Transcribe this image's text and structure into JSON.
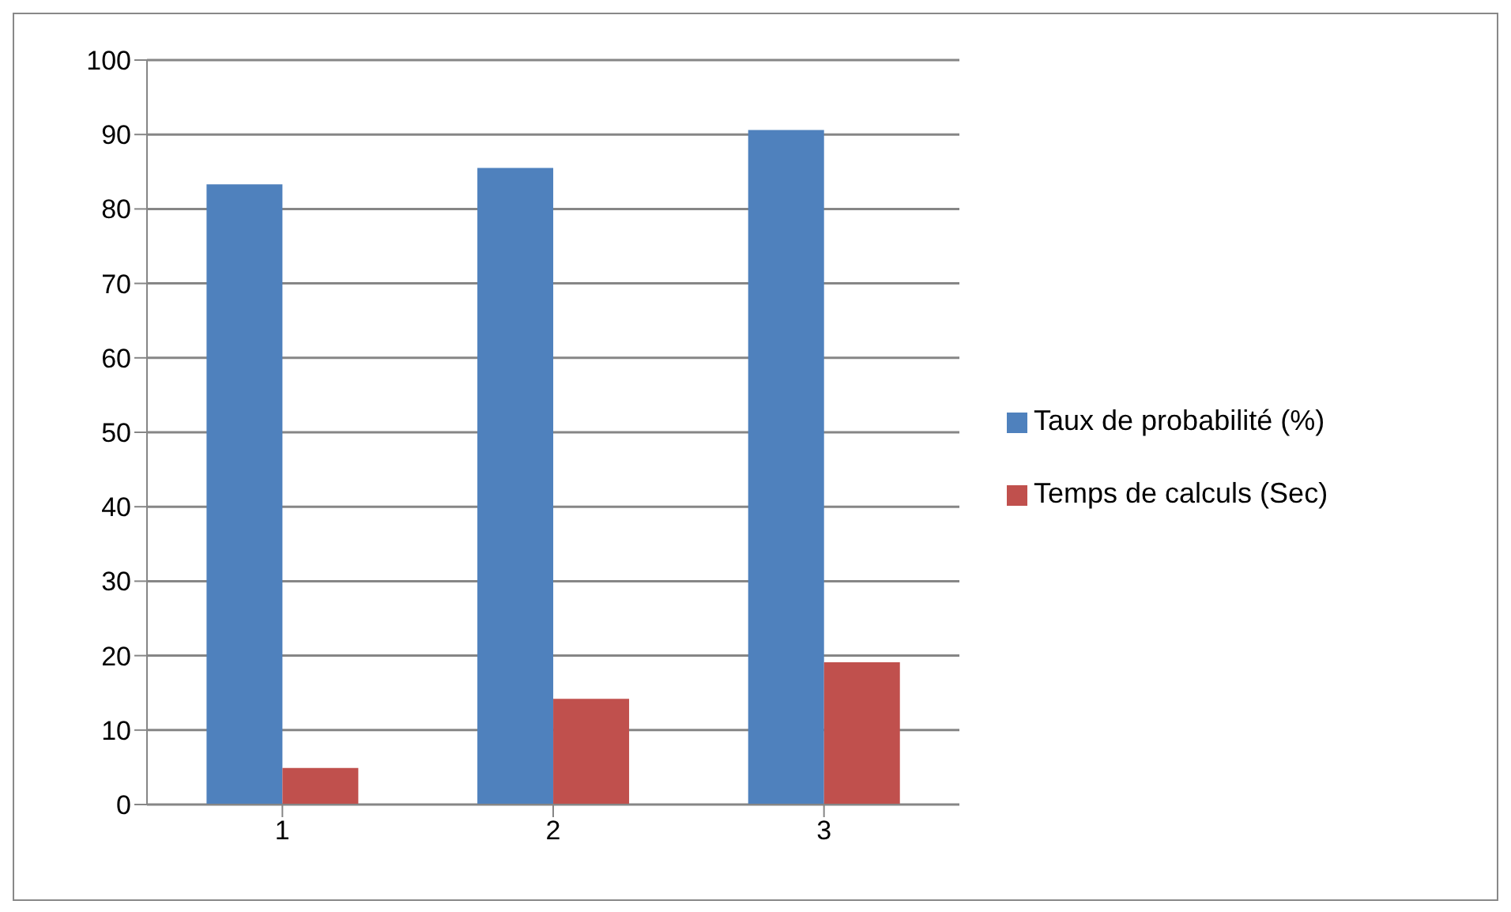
{
  "chart_data": {
    "type": "bar",
    "categories": [
      "1",
      "2",
      "3"
    ],
    "series": [
      {
        "name": "Taux de probabilité (%)",
        "color": "#4f81bd",
        "values": [
          83.3,
          85.5,
          90.6
        ]
      },
      {
        "name": "Temps de calculs (Sec)",
        "color": "#c0504d",
        "values": [
          4.9,
          14.2,
          19.1
        ]
      }
    ],
    "ylim": [
      0,
      100
    ],
    "yticks": [
      0,
      10,
      20,
      30,
      40,
      50,
      60,
      70,
      80,
      90,
      100
    ],
    "grid": "y",
    "legend": "right"
  }
}
